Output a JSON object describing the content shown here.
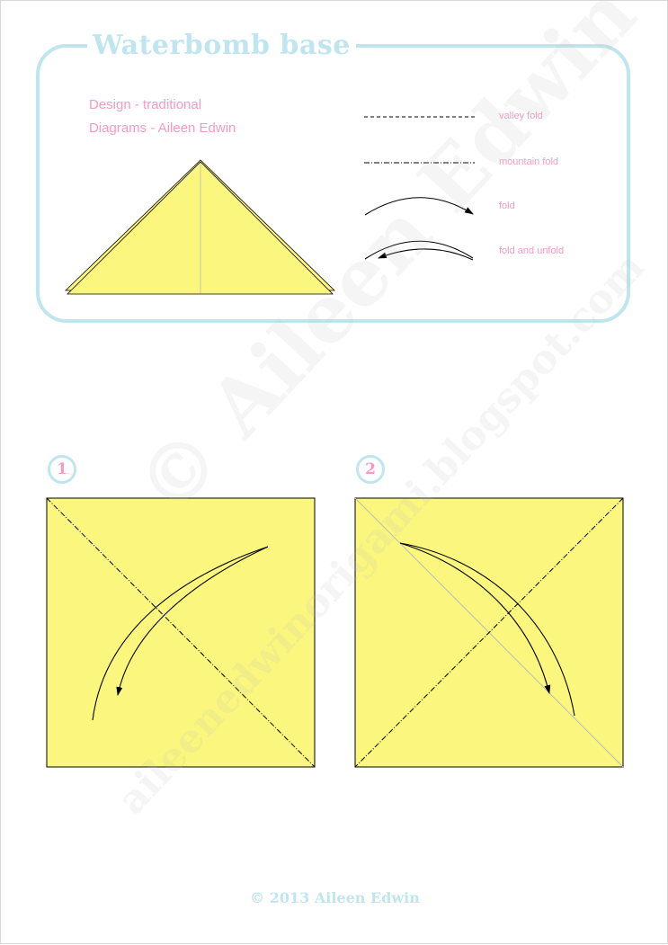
{
  "header": {
    "title": "Waterbomb base",
    "design_credit": "Design - traditional",
    "diagrams_credit": "Diagrams - Aileen Edwin"
  },
  "legend": {
    "valley_fold": "valley fold",
    "mountain_fold": "mountain fold",
    "fold": "fold",
    "fold_and_unfold": "fold and unfold"
  },
  "steps": [
    {
      "number": "1"
    },
    {
      "number": "2"
    }
  ],
  "footer": {
    "copyright": "© 2013 Aileen Edwin"
  },
  "watermark": {
    "name": "© Aileen Edwin",
    "url": "aileenedwinorigami.blogspot.com"
  },
  "colors": {
    "paper_yellow": "#fbf77e",
    "accent_blue": "#bfe6ee",
    "accent_pink": "#f59ac4",
    "line": "#000000"
  }
}
